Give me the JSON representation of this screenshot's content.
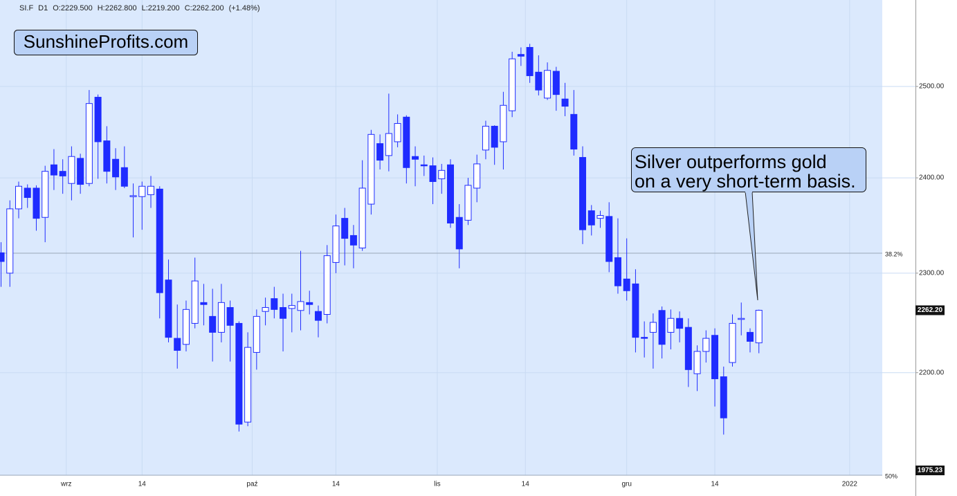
{
  "chart_data": {
    "type": "candlestick",
    "info": [
      "SI.F",
      "D1",
      "O:2229.500",
      "H:2262.800",
      "L:2219.200",
      "C:2262.200",
      "(+1.48%)"
    ],
    "watermark": "SunshineProfits.com",
    "annotation": [
      "Silver outperforms gold",
      "on a very short-term basis."
    ],
    "color": "#1f2cff",
    "up_fill": "#ffffff",
    "log_scale": true,
    "grid": true,
    "x": [
      0,
      1,
      2,
      3,
      4,
      5,
      6,
      7,
      8,
      9,
      10,
      11,
      12,
      13,
      14,
      15,
      16,
      17,
      18,
      19,
      20,
      21,
      22,
      23,
      24,
      25,
      26,
      27,
      28,
      29,
      30,
      31,
      32,
      33,
      34,
      35,
      36,
      37,
      38,
      39,
      40,
      41,
      42,
      43,
      44,
      45,
      46,
      47,
      48,
      49,
      50,
      51,
      52,
      53,
      54,
      55,
      56,
      57,
      58,
      59,
      60,
      61,
      62,
      63,
      64,
      65,
      66,
      67,
      68,
      69,
      70,
      71,
      72,
      73,
      74,
      75,
      76,
      77,
      78,
      79,
      80,
      81,
      82,
      83,
      84,
      85,
      86
    ],
    "open": [
      2321,
      2300,
      2367,
      2389,
      2389,
      2358,
      2414,
      2407,
      2394,
      2421,
      2394,
      2488,
      2440,
      2420,
      2411,
      2380,
      2380,
      2382,
      2388,
      2293,
      2234,
      2228,
      2249,
      2270,
      2256,
      2240,
      2265,
      2249,
      2152,
      2220,
      2261,
      2274,
      2265,
      2264,
      2262,
      2270,
      2261,
      2258,
      2311,
      2357,
      2339,
      2326,
      2372,
      2437,
      2424,
      2439,
      2466,
      2423,
      2414,
      2413,
      2399,
      2414,
      2358,
      2355,
      2389,
      2430,
      2456,
      2439,
      2473,
      2536,
      2544,
      2516,
      2487,
      2517,
      2486,
      2469,
      2422,
      2365,
      2357,
      2359,
      2316,
      2294,
      2289,
      2235,
      2240,
      2262,
      2240,
      2254,
      2245,
      2199,
      2221,
      2237,
      2196,
      2210,
      2253,
      2240,
      2229.5
    ],
    "high": [
      2332,
      2376,
      2396,
      2393,
      2392,
      2413,
      2431,
      2420,
      2434,
      2426,
      2496,
      2491,
      2456,
      2432,
      2434,
      2394,
      2396,
      2402,
      2391,
      2314,
      2268,
      2272,
      2316,
      2289,
      2284,
      2289,
      2272,
      2251,
      2240,
      2263,
      2275,
      2286,
      2279,
      2279,
      2323,
      2282,
      2267,
      2329,
      2361,
      2368,
      2350,
      2419,
      2452,
      2447,
      2492,
      2469,
      2468,
      2434,
      2424,
      2422,
      2415,
      2420,
      2372,
      2400,
      2425,
      2462,
      2457,
      2494,
      2539,
      2544,
      2548,
      2535,
      2527,
      2522,
      2504,
      2496,
      2434,
      2371,
      2365,
      2374,
      2357,
      2336,
      2304,
      2251,
      2259,
      2266,
      2263,
      2261,
      2254,
      2227,
      2242,
      2244,
      2206,
      2258,
      2270,
      2244,
      2262.8
    ],
    "low": [
      2286,
      2286,
      2357,
      2368,
      2344,
      2332,
      2387,
      2383,
      2376,
      2383,
      2391,
      2399,
      2394,
      2387,
      2389,
      2337,
      2345,
      2368,
      2254,
      2230,
      2204,
      2221,
      2244,
      2247,
      2211,
      2230,
      2211,
      2143,
      2148,
      2203,
      2247,
      2254,
      2221,
      2240,
      2242,
      2258,
      2235,
      2249,
      2300,
      2308,
      2305,
      2323,
      2361,
      2409,
      2407,
      2433,
      2394,
      2391,
      2402,
      2372,
      2383,
      2347,
      2305,
      2350,
      2374,
      2420,
      2414,
      2409,
      2466,
      2523,
      2504,
      2490,
      2485,
      2473,
      2467,
      2424,
      2330,
      2339,
      2347,
      2301,
      2279,
      2272,
      2220,
      2215,
      2204,
      2214,
      2223,
      2230,
      2186,
      2182,
      2210,
      2167,
      2140,
      2206,
      2237,
      2220,
      2219.2
    ],
    "close": [
      2312,
      2367,
      2391,
      2379,
      2357,
      2407,
      2403,
      2402,
      2423,
      2393,
      2481,
      2439,
      2407,
      2401,
      2391,
      2381,
      2391,
      2391,
      2280,
      2235,
      2222,
      2263,
      2292,
      2268,
      2240,
      2270,
      2247,
      2150,
      2225,
      2256,
      2265,
      2263,
      2254,
      2267,
      2271,
      2268,
      2252,
      2318,
      2349,
      2336,
      2329,
      2389,
      2447,
      2419,
      2448,
      2459,
      2411,
      2420,
      2413,
      2396,
      2408,
      2352,
      2325,
      2392,
      2415,
      2456,
      2433,
      2479,
      2531,
      2534,
      2512,
      2496,
      2518,
      2491,
      2478,
      2431,
      2345,
      2350,
      2360,
      2312,
      2287,
      2282,
      2235,
      2234,
      2250,
      2228,
      2254,
      2244,
      2203,
      2221,
      2234,
      2194,
      2156,
      2249,
      2254,
      2231,
      2262.2
    ],
    "xlim": [
      -0.12,
      100
    ],
    "xticks": [
      {
        "value": 7.4,
        "label": "wrz"
      },
      {
        "value": 16,
        "label": "14"
      },
      {
        "value": 28.5,
        "label": "paź"
      },
      {
        "value": 38,
        "label": "14"
      },
      {
        "value": 49.5,
        "label": "lis"
      },
      {
        "value": 59.5,
        "label": "14"
      },
      {
        "value": 71,
        "label": "gru"
      },
      {
        "value": 81,
        "label": "14"
      },
      {
        "value": 96.3,
        "label": "2022"
      }
    ],
    "ylim": [
      2101.5,
      2598.4
    ],
    "yticks": [
      {
        "value": 2200,
        "label": "2200.00"
      },
      {
        "value": 2300,
        "label": "2300.00"
      },
      {
        "value": 2400,
        "label": "2400.00"
      },
      {
        "value": 2500,
        "label": "2500.00"
      }
    ],
    "levels": [
      {
        "value": 2320.6,
        "label": "38.2%"
      },
      {
        "value": 2101.5,
        "label": "50%"
      }
    ],
    "price_labels": [
      {
        "value": 2262.2,
        "label": "2262.20"
      },
      {
        "value": 1975.23,
        "label": "1975.23"
      }
    ]
  }
}
